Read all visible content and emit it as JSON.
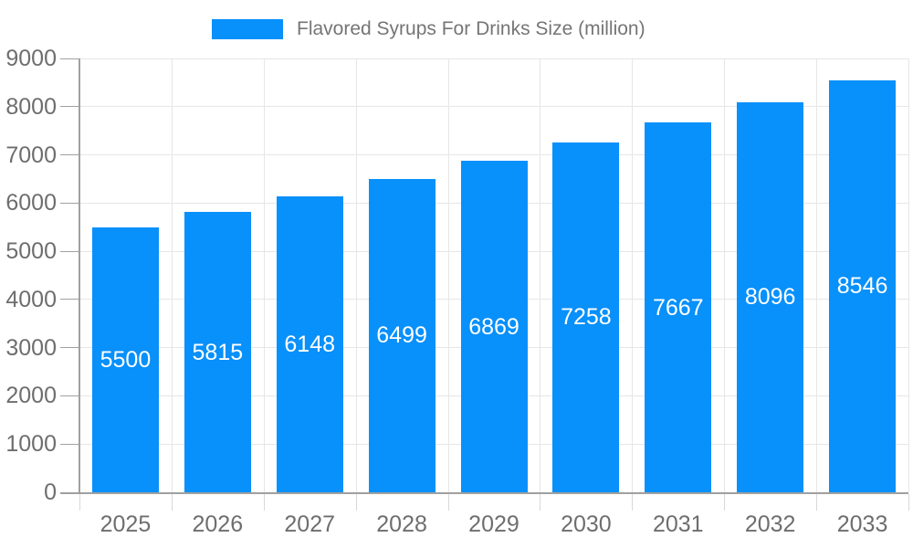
{
  "legend": {
    "label": "Flavored Syrups For Drinks Size (million)"
  },
  "chart_data": {
    "type": "bar",
    "title": "Flavored Syrups For Drinks Size (million)",
    "series_name": "Flavored Syrups For Drinks Size (million)",
    "categories": [
      "2025",
      "2026",
      "2027",
      "2028",
      "2029",
      "2030",
      "2031",
      "2032",
      "2033"
    ],
    "values": [
      5500,
      5815,
      6148,
      6499,
      6869,
      7258,
      7667,
      8096,
      8546
    ],
    "xlabel": "",
    "ylabel": "",
    "ylim": [
      0,
      9000
    ],
    "ytick_step": 1000,
    "ytick_labels": [
      "0",
      "1000",
      "2000",
      "3000",
      "4000",
      "5000",
      "6000",
      "7000",
      "8000",
      "9000"
    ],
    "grid": true,
    "legend_position": "top",
    "value_labels_position": "inside-center"
  },
  "style": {
    "bar_color": "#0890FB",
    "value_label_color": "#FFFFFF",
    "axis_label_color": "#6E6E6E",
    "legend_text_color": "#757575",
    "grid_color": "#E6E6E6",
    "axis_line_color": "#A0A0A0",
    "xtick_color": "#D8D8D8",
    "ytick_color": "#A0A0A0",
    "background": "#FFFFFF"
  }
}
